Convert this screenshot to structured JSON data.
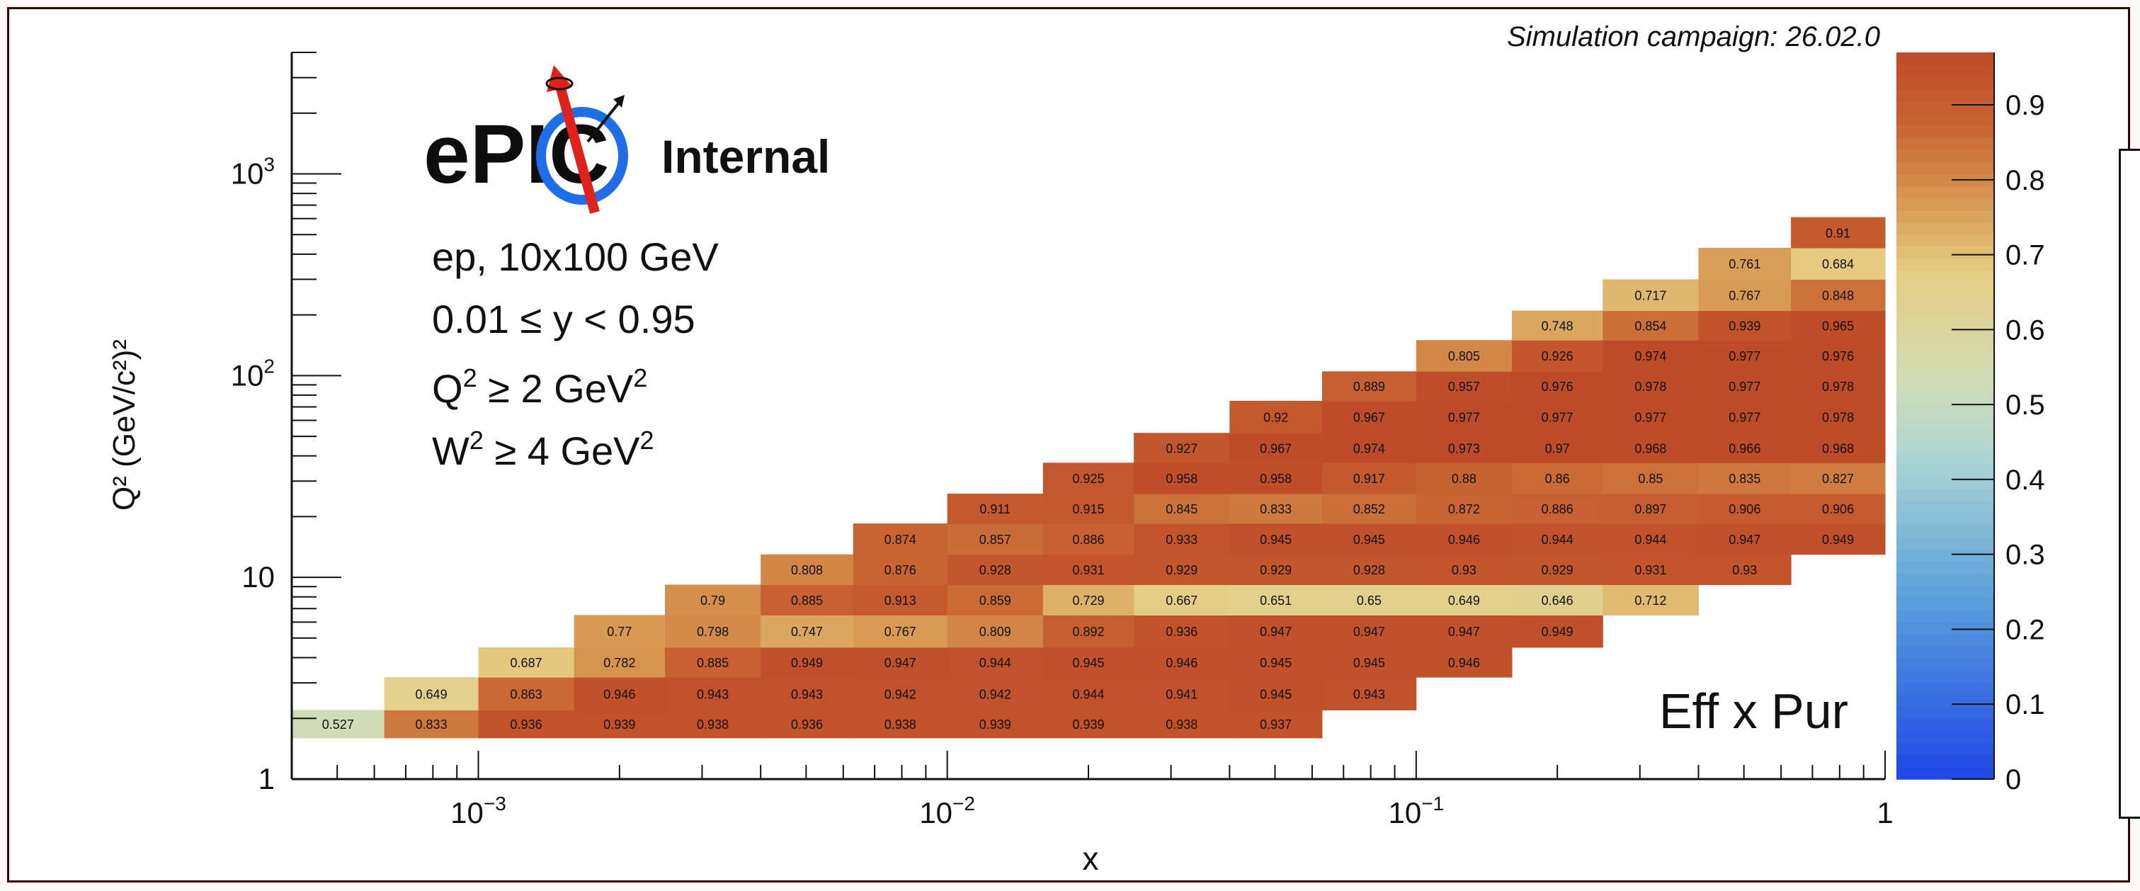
{
  "header": {
    "campaign_label": "Simulation campaign: 26.02.0"
  },
  "logo": {
    "text": "ePIC",
    "badge": "Internal"
  },
  "annotations": {
    "line1": "ep, 10x100 GeV",
    "line2": "0.01 ≤ y < 0.95",
    "line3_pre": "Q",
    "line3_sup": "2",
    "line3_mid": " ≥ 2 GeV",
    "line3_sup2": "2",
    "line4_pre": "W",
    "line4_sup": "2",
    "line4_mid": " ≥ 4 GeV",
    "line4_sup2": "2",
    "corner_label": "Eff x Pur"
  },
  "colors": {
    "high": "#c4542a",
    "mid": "#d98b47",
    "low": "#e8cf88",
    "lowest": "#c8dab0",
    "frame": "#3a0000"
  },
  "chart_data": {
    "type": "heatmap",
    "title": "",
    "xlabel": "x",
    "ylabel": "Q² (GeV/c²)²",
    "x_scale": "log",
    "y_scale": "log",
    "xlim": [
      0.0004,
      1
    ],
    "ylim": [
      1,
      4000
    ],
    "x_ticks": [
      {
        "value": 0.001,
        "base": "10",
        "exp": "−3"
      },
      {
        "value": 0.01,
        "base": "10",
        "exp": "−2"
      },
      {
        "value": 0.1,
        "base": "10",
        "exp": "−1"
      },
      {
        "value": 1,
        "base": "1",
        "exp": ""
      }
    ],
    "y_ticks": [
      {
        "value": 1,
        "base": "1",
        "exp": ""
      },
      {
        "value": 10,
        "base": "10",
        "exp": ""
      },
      {
        "value": 100,
        "base": "10",
        "exp": "2"
      },
      {
        "value": 1000,
        "base": "10",
        "exp": "3"
      }
    ],
    "colorbar": {
      "range": [
        0,
        0.97
      ],
      "ticks": [
        "0",
        "0.1",
        "0.2",
        "0.3",
        "0.4",
        "0.5",
        "0.6",
        "0.7",
        "0.8",
        "0.9"
      ]
    },
    "x_bins": [
      0.0004,
      0.00063,
      0.001,
      0.0016,
      0.0025,
      0.004,
      0.0063,
      0.01,
      0.016,
      0.025,
      0.04,
      0.063,
      0.1,
      0.16,
      0.25,
      0.4,
      0.63,
      1
    ],
    "y_bins": [
      1.6,
      2.2,
      3.2,
      4.5,
      6.5,
      9.2,
      13,
      18.5,
      26,
      37,
      52,
      75,
      105,
      150,
      210,
      300,
      430,
      610,
      870,
      1250,
      1750,
      2500,
      3500
    ],
    "rows": [
      {
        "q2_bin": 0,
        "start": 0,
        "values": [
          0.527,
          0.833,
          0.936,
          0.939,
          0.938,
          0.936,
          0.938,
          0.939,
          0.939,
          0.938,
          0.937
        ]
      },
      {
        "q2_bin": 1,
        "start": 1,
        "values": [
          0.649,
          0.863,
          0.946,
          0.943,
          0.943,
          0.942,
          0.942,
          0.944,
          0.941,
          0.945,
          0.943
        ]
      },
      {
        "q2_bin": 2,
        "start": 2,
        "values": [
          0.687,
          0.782,
          0.885,
          0.949,
          0.947,
          0.944,
          0.945,
          0.946,
          0.945,
          0.945,
          0.946
        ]
      },
      {
        "q2_bin": 3,
        "start": 3,
        "values": [
          0.77,
          0.798,
          0.747,
          0.767,
          0.809,
          0.892,
          0.936,
          0.947,
          0.947,
          0.947,
          0.949
        ]
      },
      {
        "q2_bin": 4,
        "start": 4,
        "values": [
          0.79,
          0.885,
          0.913,
          0.859,
          0.729,
          0.667,
          0.651,
          0.65,
          0.649,
          0.646,
          0.712
        ]
      },
      {
        "q2_bin": 5,
        "start": 5,
        "values": [
          0.808,
          0.876,
          0.928,
          0.931,
          0.929,
          0.929,
          0.928,
          0.93,
          0.929,
          0.931,
          0.93
        ]
      },
      {
        "q2_bin": 6,
        "start": 6,
        "values": [
          0.874,
          0.857,
          0.886,
          0.933,
          0.945,
          0.945,
          0.946,
          0.944,
          0.944,
          0.947,
          0.949
        ]
      },
      {
        "q2_bin": 7,
        "start": 7,
        "values": [
          0.911,
          0.915,
          0.845,
          0.833,
          0.852,
          0.872,
          0.886,
          0.897,
          0.906,
          0.906
        ]
      },
      {
        "q2_bin": 8,
        "start": 8,
        "values": [
          0.925,
          0.958,
          0.958,
          0.917,
          0.88,
          0.86,
          0.85,
          0.835,
          0.827
        ]
      },
      {
        "q2_bin": 9,
        "start": 9,
        "values": [
          0.927,
          0.967,
          0.974,
          0.973,
          0.97,
          0.968,
          0.966,
          0.968
        ]
      },
      {
        "q2_bin": 10,
        "start": 10,
        "values": [
          0.92,
          0.967,
          0.977,
          0.977,
          0.977,
          0.977,
          0.978
        ]
      },
      {
        "q2_bin": 11,
        "start": 11,
        "values": [
          0.889,
          0.957,
          0.976,
          0.978,
          0.977,
          0.978
        ]
      },
      {
        "q2_bin": 12,
        "start": 12,
        "values": [
          0.805,
          0.926,
          0.974,
          0.977,
          0.976
        ]
      },
      {
        "q2_bin": 13,
        "start": 13,
        "values": [
          0.748,
          0.854,
          0.939,
          0.965
        ]
      },
      {
        "q2_bin": 14,
        "start": 14,
        "values": [
          0.717,
          0.767,
          0.848
        ]
      },
      {
        "q2_bin": 15,
        "start": 15,
        "values": [
          0.761,
          0.684
        ]
      },
      {
        "q2_bin": 16,
        "start": 16,
        "values": [
          0.91
        ]
      }
    ]
  }
}
